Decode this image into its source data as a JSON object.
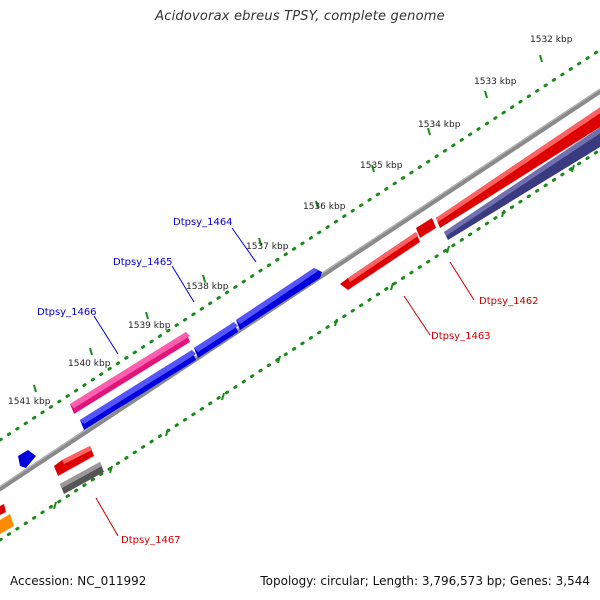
{
  "header": {
    "title": "Acidovorax ebreus TPSY, complete genome"
  },
  "footer": {
    "accession": "Accession: NC_011992",
    "topology": "Topology: circular; Length: 3,796,573 bp; Genes: 3,544"
  },
  "colors": {
    "backbone": "#808080",
    "tick": "#1a8a1a",
    "forward_label": "#0000cc",
    "reverse_label": "#cc0000",
    "ruler_text": "#222222"
  },
  "ruler": {
    "unit": "kbp",
    "labels": [
      "1532 kbp",
      "1533 kbp",
      "1534 kbp",
      "1535 kbp",
      "1536 kbp",
      "1537 kbp",
      "1538 kbp",
      "1539 kbp",
      "1540 kbp",
      "1541 kbp"
    ]
  },
  "genes": [
    {
      "name": "Dtpsy_1462",
      "strand": "reverse",
      "color": "red"
    },
    {
      "name": "Dtpsy_1463",
      "strand": "reverse",
      "color": "red"
    },
    {
      "name": "Dtpsy_1464",
      "strand": "forward",
      "color": "blue"
    },
    {
      "name": "Dtpsy_1465",
      "strand": "forward",
      "color": "blue"
    },
    {
      "name": "Dtpsy_1466",
      "strand": "forward",
      "color": "blue"
    },
    {
      "name": "Dtpsy_1467",
      "strand": "reverse",
      "color": "red"
    }
  ]
}
